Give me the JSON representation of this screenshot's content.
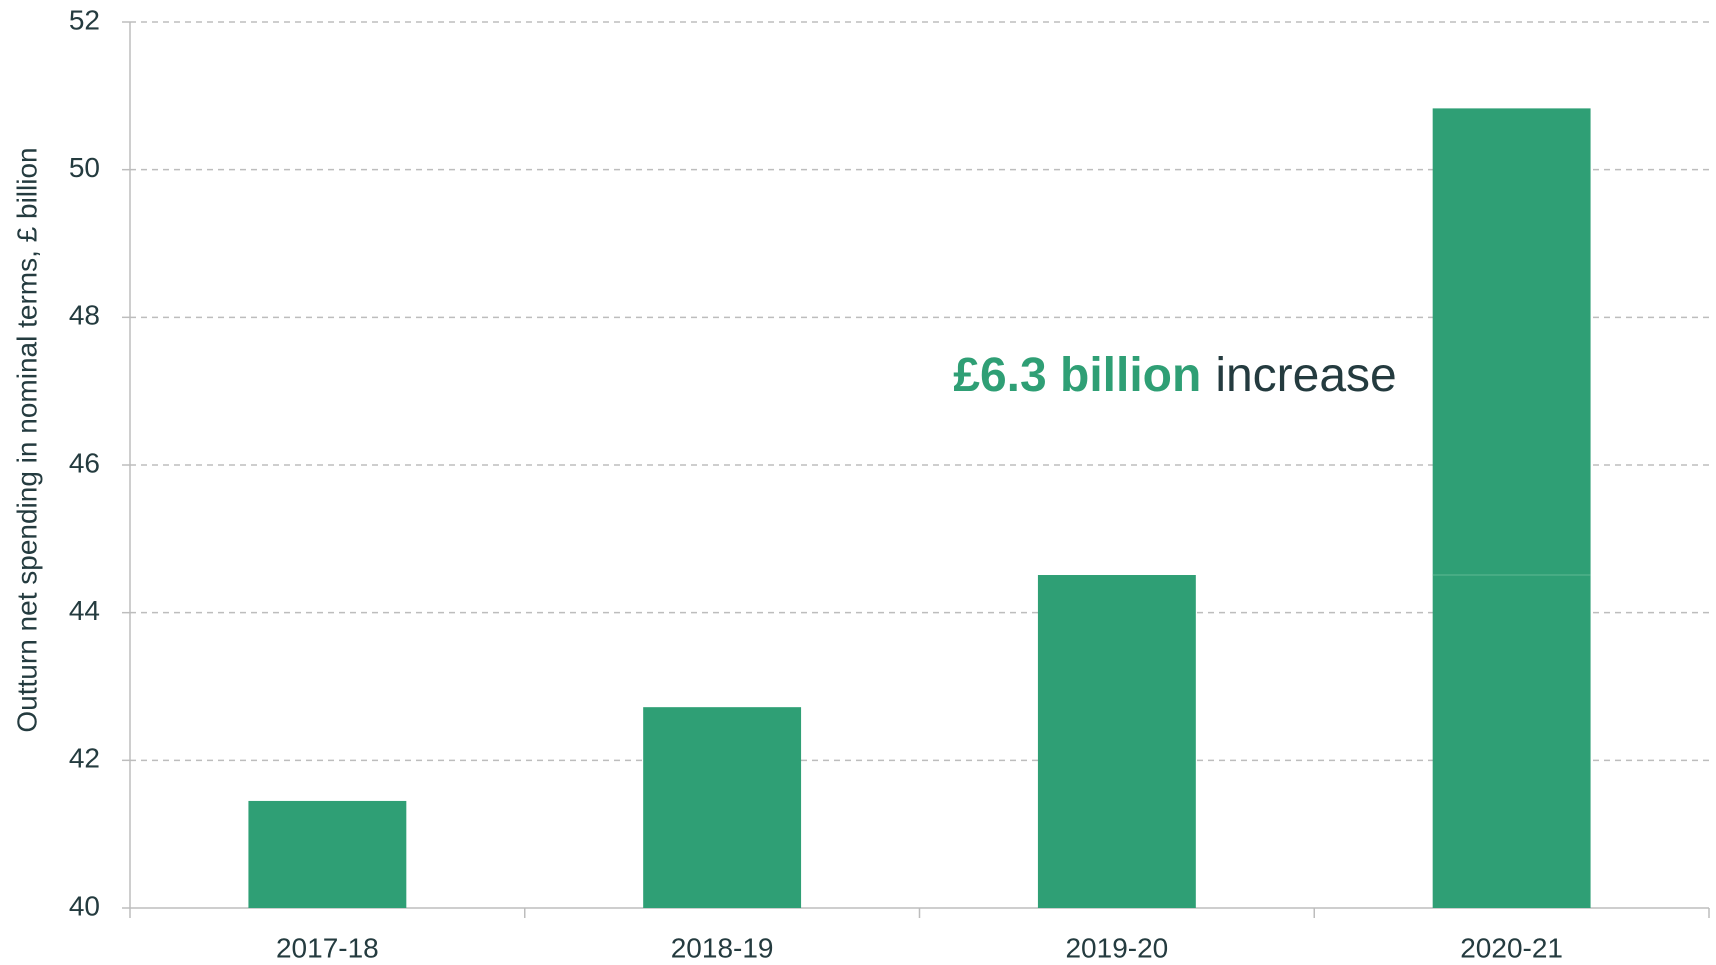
{
  "chart_data": {
    "type": "bar",
    "y_label": "Outturn net spending in nominal terms, £ billion",
    "categories": [
      "2017-18",
      "2018-19",
      "2019-20",
      "2020-21"
    ],
    "values": [
      41.45,
      42.72,
      44.51,
      50.83
    ],
    "color": "#2f9f75",
    "ylim": [
      40,
      52
    ],
    "yticks": [
      40,
      42,
      44,
      46,
      48,
      50,
      52
    ],
    "grid": true,
    "annotation": {
      "highlight": "£6.3 billion",
      "text": "increase"
    }
  }
}
